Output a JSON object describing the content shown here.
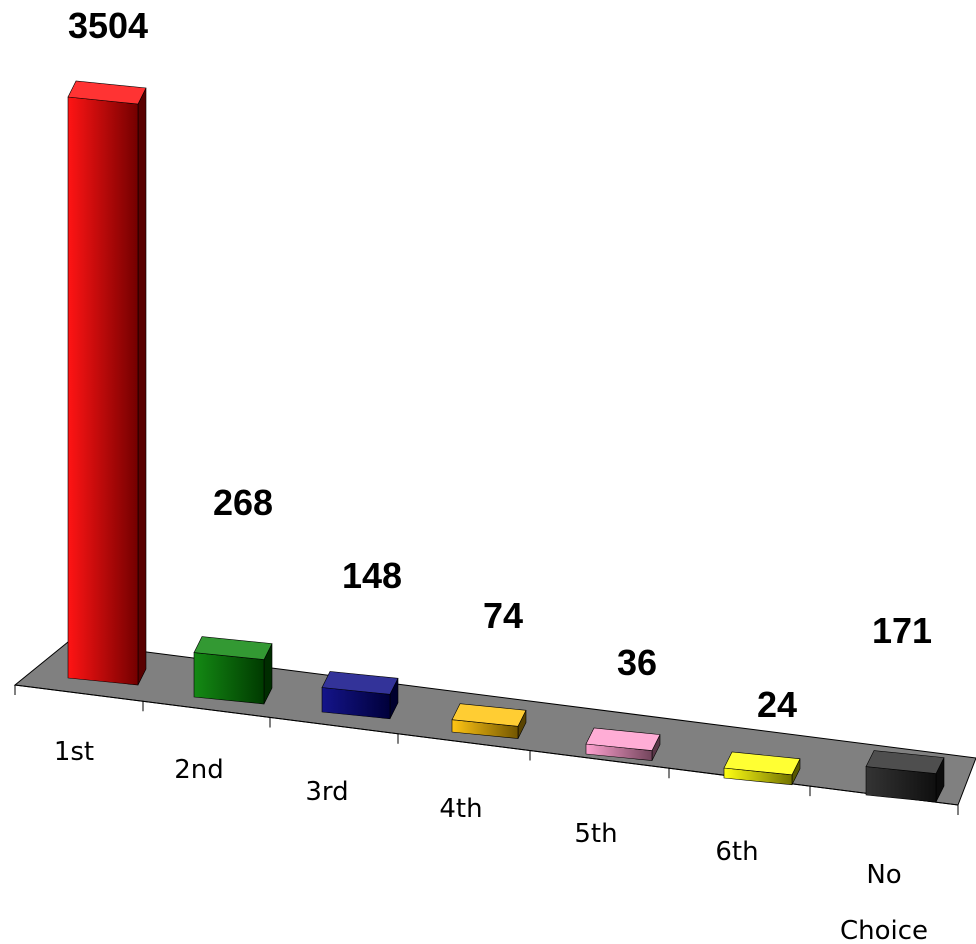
{
  "chart_data": {
    "type": "bar",
    "style": "3d-column",
    "categories": [
      "1st",
      "2nd",
      "3rd",
      "4th",
      "5th",
      "6th",
      "No Choice"
    ],
    "category_lines": [
      [
        "1st"
      ],
      [
        "2nd"
      ],
      [
        "3rd"
      ],
      [
        "4th"
      ],
      [
        "5th"
      ],
      [
        "6th"
      ],
      [
        "No",
        "Choice"
      ]
    ],
    "values": [
      3504,
      268,
      148,
      74,
      36,
      24,
      171
    ],
    "value_labels": [
      "3504",
      "268",
      "148",
      "74",
      "36",
      "24",
      "171"
    ],
    "colors": [
      "#ff0000",
      "#008000",
      "#000080",
      "#ffc000",
      "#ff99cc",
      "#ffff00",
      "#222222"
    ],
    "floor_color": "#808080",
    "title": "",
    "xlabel": "",
    "ylabel": "",
    "grid": false,
    "legend": "none"
  }
}
